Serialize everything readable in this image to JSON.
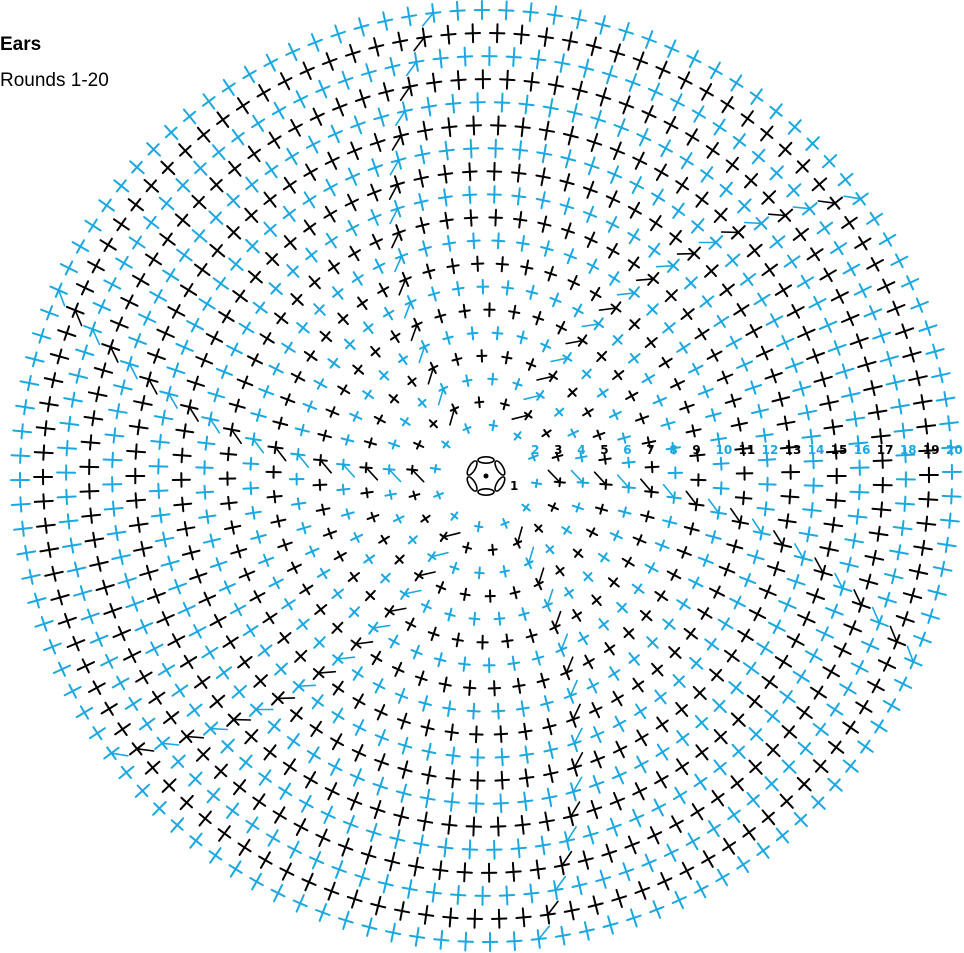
{
  "title": "Ears",
  "subtitle": "Rounds 1-20",
  "colors": {
    "odd_round": "#1ba8e0",
    "even_round": "#000000"
  },
  "pattern": {
    "rounds": 20,
    "wedges": 6,
    "center_label": "1",
    "round_labels": [
      "2",
      "3",
      "4",
      "5",
      "6",
      "7",
      "8",
      "9",
      "10",
      "11",
      "12",
      "13",
      "14",
      "15",
      "16",
      "17",
      "18",
      "19",
      "20"
    ]
  }
}
